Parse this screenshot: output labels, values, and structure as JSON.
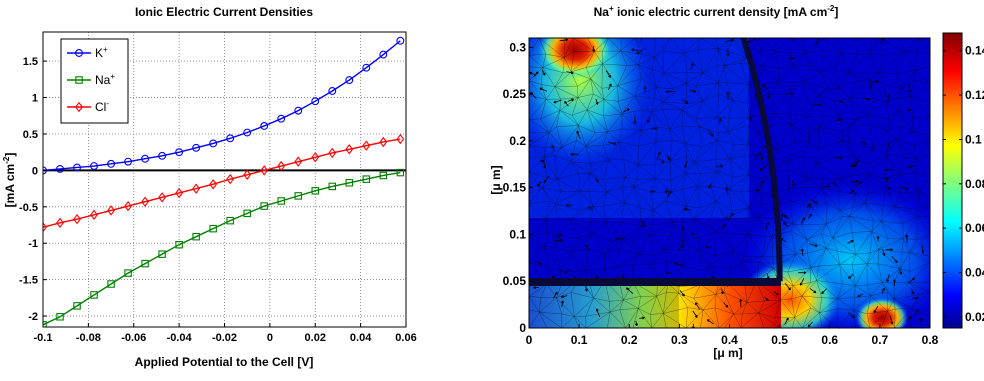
{
  "chart_data": [
    {
      "type": "line",
      "title": "Ionic Electric Current Densities",
      "xlabel": "Applied Potential to the Cell [V]",
      "ylabel_parts": [
        "[mA cm",
        "-2",
        "]"
      ],
      "xlim": [
        -0.1,
        0.06
      ],
      "ylim": [
        -2.15,
        1.9
      ],
      "xticks": [
        -0.1,
        -0.08,
        -0.06,
        -0.04,
        -0.02,
        0,
        0.02,
        0.04,
        0.06
      ],
      "xtick_labels": [
        "-0.1",
        "-0.08",
        "-0.06",
        "-0.04",
        "-0.02",
        "0",
        "0.02",
        "0.04",
        "0.06"
      ],
      "yticks": [
        -2,
        -1.5,
        -1,
        -0.5,
        0,
        0.5,
        1,
        1.5
      ],
      "ytick_labels": [
        "-2",
        "-1.5",
        "-1",
        "-0.5",
        "0",
        "0.5",
        "1",
        "1.5"
      ],
      "grid": true,
      "legend_position": "top-left",
      "zero_line": true,
      "x": [
        -0.1,
        -0.0925,
        -0.085,
        -0.0775,
        -0.07,
        -0.0625,
        -0.055,
        -0.0475,
        -0.04,
        -0.0325,
        -0.025,
        -0.0175,
        -0.01,
        -0.0025,
        0.005,
        0.0125,
        0.02,
        0.0275,
        0.035,
        0.0425,
        0.05,
        0.0575
      ],
      "series": [
        {
          "name": "K",
          "superscript": "+",
          "color": "#0000ff",
          "marker": "circle",
          "values": [
            0.0,
            0.02,
            0.04,
            0.06,
            0.09,
            0.12,
            0.16,
            0.2,
            0.25,
            0.31,
            0.37,
            0.44,
            0.52,
            0.61,
            0.71,
            0.82,
            0.95,
            1.09,
            1.24,
            1.41,
            1.59,
            1.78
          ]
        },
        {
          "name": "Na",
          "superscript": "+",
          "color": "#008000",
          "marker": "square",
          "values": [
            -2.12,
            -2.01,
            -1.86,
            -1.71,
            -1.56,
            -1.41,
            -1.28,
            -1.15,
            -1.02,
            -0.91,
            -0.8,
            -0.69,
            -0.59,
            -0.49,
            -0.42,
            -0.35,
            -0.28,
            -0.22,
            -0.17,
            -0.12,
            -0.07,
            -0.03
          ]
        },
        {
          "name": "Cl",
          "superscript": "-",
          "color": "#ff0000",
          "marker": "diamond",
          "values": [
            -0.78,
            -0.72,
            -0.67,
            -0.61,
            -0.55,
            -0.49,
            -0.43,
            -0.37,
            -0.31,
            -0.25,
            -0.19,
            -0.12,
            -0.06,
            0.0,
            0.06,
            0.12,
            0.18,
            0.24,
            0.29,
            0.34,
            0.39,
            0.43
          ]
        }
      ]
    },
    {
      "type": "heatmap",
      "title_parts": [
        "Na",
        "+",
        " ionic electric current density [mA cm",
        "-2",
        "]"
      ],
      "xlabel": "[μ m]",
      "ylabel": "[μ m]",
      "xlim": [
        0,
        0.8
      ],
      "ylim": [
        0,
        0.31
      ],
      "xticks": [
        0,
        0.1,
        0.2,
        0.3,
        0.4,
        0.5,
        0.6,
        0.7,
        0.8
      ],
      "xtick_labels": [
        "0",
        "0.1",
        "0.2",
        "0.3",
        "0.4",
        "0.5",
        "0.6",
        "0.7",
        "0.8"
      ],
      "yticks": [
        0,
        0.05,
        0.1,
        0.15,
        0.2,
        0.25,
        0.3
      ],
      "ytick_labels": [
        "0",
        "0.05",
        "0.1",
        "0.15",
        "0.2",
        "0.25",
        "0.3"
      ],
      "colorbar": {
        "min": 0.015,
        "max": 0.148,
        "ticks": [
          0.02,
          0.04,
          0.06,
          0.08,
          0.1,
          0.12,
          0.14
        ],
        "tick_labels": [
          "0.02",
          "0.04",
          "0.06",
          "0.08",
          "0.1",
          "0.12",
          "0.14"
        ],
        "colormap": "jet"
      },
      "hotspots": [
        {
          "x": 0.09,
          "y": 0.3,
          "value": 0.148
        },
        {
          "x": 0.7,
          "y": 0.012,
          "value": 0.148
        },
        {
          "x": 0.47,
          "y": 0.03,
          "value": 0.13
        },
        {
          "x": 0.04,
          "y": 0.25,
          "value": 0.09
        }
      ],
      "structure": {
        "membrane_arc_center": [
          0,
          0.05
        ],
        "membrane_arc_radius": 0.5,
        "channel_y": 0.05,
        "channel_x_range": [
          0,
          0.5
        ]
      }
    }
  ]
}
